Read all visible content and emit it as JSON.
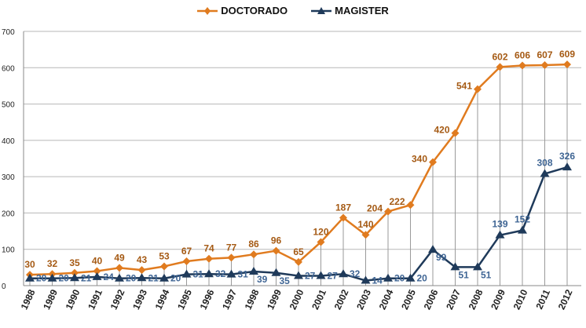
{
  "chart_data": {
    "type": "line",
    "title": "",
    "xlabel": "",
    "ylabel": "",
    "ylim": [
      0,
      700
    ],
    "yticks": [
      0,
      100,
      200,
      300,
      400,
      500,
      600,
      700
    ],
    "grid": true,
    "legend_position": "top-center",
    "x": [
      "1988",
      "1989",
      "1990",
      "1991",
      "1992",
      "1993",
      "1994",
      "1995",
      "1996",
      "1997",
      "1998",
      "1999",
      "2000",
      "2001",
      "2002",
      "2003",
      "2004",
      "2005",
      "2006",
      "2007",
      "2008",
      "2009",
      "2010",
      "2011",
      "2012"
    ],
    "series": [
      {
        "name": "DOCTORADO",
        "color": "#e07b1f",
        "label_color": "#a55a14",
        "marker": "diamond",
        "values": [
          30,
          32,
          35,
          40,
          49,
          43,
          53,
          67,
          74,
          77,
          86,
          96,
          65,
          120,
          187,
          140,
          204,
          222,
          340,
          420,
          541,
          602,
          606,
          607,
          609
        ]
      },
      {
        "name": "MAGISTER",
        "color": "#1f3a5a",
        "label_color": "#3f6594",
        "marker": "triangle",
        "values": [
          20,
          20,
          21,
          24,
          20,
          21,
          20,
          31,
          32,
          31,
          39,
          35,
          27,
          27,
          32,
          14,
          20,
          20,
          99,
          51,
          51,
          139,
          152,
          308,
          326
        ]
      }
    ]
  }
}
